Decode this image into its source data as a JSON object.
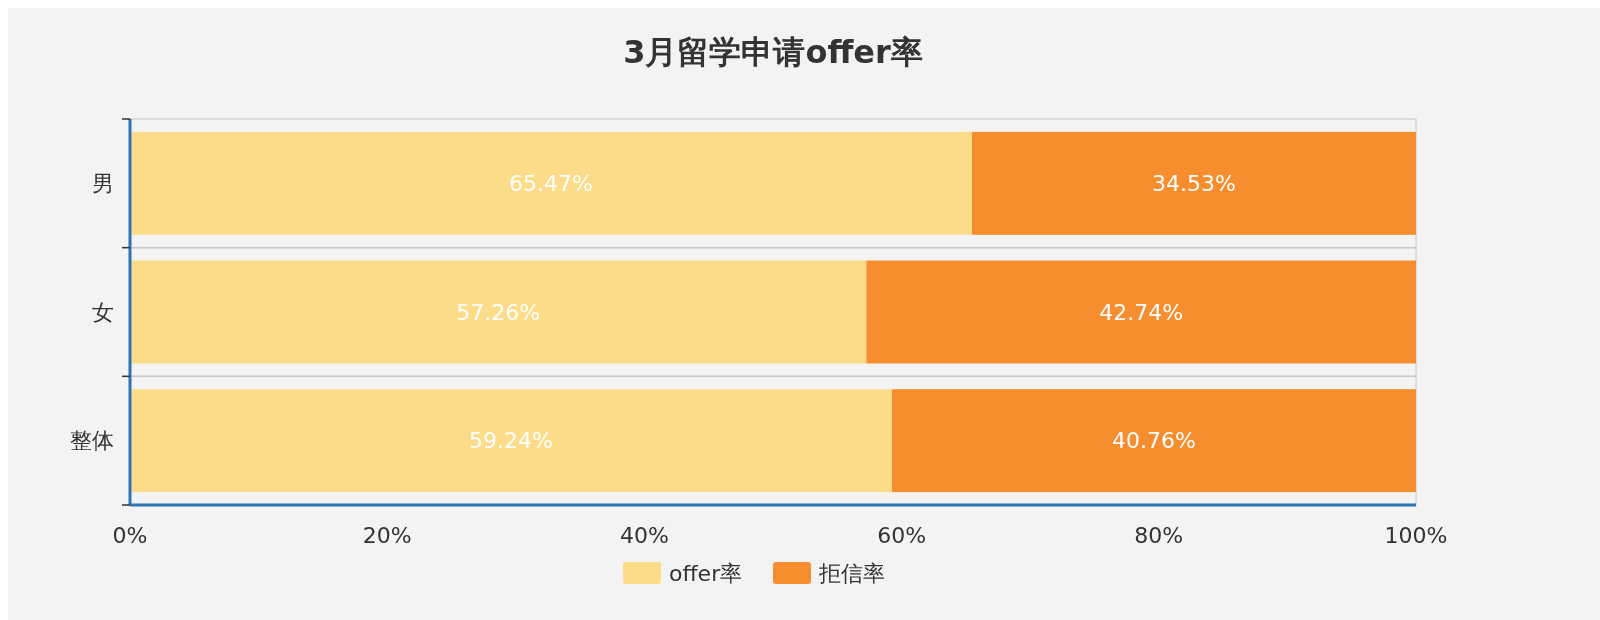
{
  "chart_data": {
    "type": "bar",
    "title": "3月留学申请offer率",
    "orientation": "horizontal",
    "stacked": true,
    "categories": [
      "男",
      "女",
      "整体"
    ],
    "series": [
      {
        "name": "offer率",
        "color": "#fcdc88",
        "values": [
          65.47,
          57.26,
          59.24
        ],
        "value_labels": [
          "65.47%",
          "57.26%",
          "59.24%"
        ]
      },
      {
        "name": "拒信率",
        "color": "#f68d2f",
        "values": [
          34.53,
          42.74,
          40.76
        ],
        "value_labels": [
          "34.53%",
          "42.74%",
          "40.76%"
        ]
      }
    ],
    "xlim": [
      0,
      100
    ],
    "xticks": [
      {
        "value": 0,
        "label": "0%"
      },
      {
        "value": 20,
        "label": "20%"
      },
      {
        "value": 40,
        "label": "40%"
      },
      {
        "value": 60,
        "label": "60%"
      },
      {
        "value": 80,
        "label": "80%"
      },
      {
        "value": 100,
        "label": "100%"
      }
    ],
    "grid": "y",
    "legend": "bottom"
  }
}
